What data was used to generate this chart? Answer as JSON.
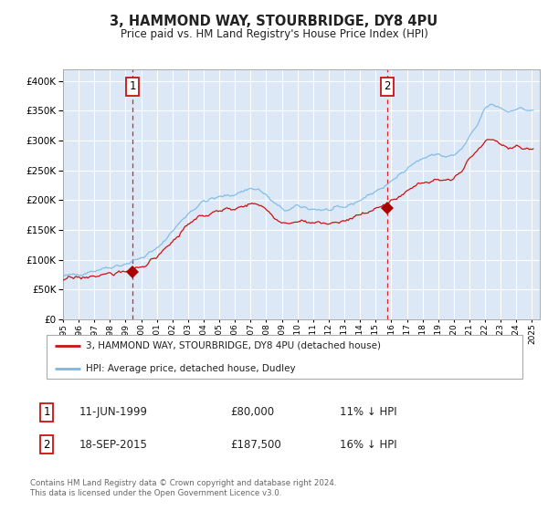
{
  "title": "3, HAMMOND WAY, STOURBRIDGE, DY8 4PU",
  "subtitle": "Price paid vs. HM Land Registry's House Price Index (HPI)",
  "legend_entry1": "3, HAMMOND WAY, STOURBRIDGE, DY8 4PU (detached house)",
  "legend_entry2": "HPI: Average price, detached house, Dudley",
  "transaction1_date": "11-JUN-1999",
  "transaction1_price": "£80,000",
  "transaction1_hpi": "11% ↓ HPI",
  "transaction1_year": 1999.45,
  "transaction1_value": 80000,
  "transaction2_date": "18-SEP-2015",
  "transaction2_price": "£187,500",
  "transaction2_hpi": "16% ↓ HPI",
  "transaction2_year": 2015.72,
  "transaction2_value": 187500,
  "hpi_line_color": "#7ab8e8",
  "price_line_color": "#cc1111",
  "vline_color": "#dd2222",
  "marker_color": "#aa0000",
  "bg_color": "#dce8f5",
  "grid_color": "#ffffff",
  "ylim": [
    0,
    420000
  ],
  "yticks": [
    0,
    50000,
    100000,
    150000,
    200000,
    250000,
    300000,
    350000,
    400000
  ],
  "footnote": "Contains HM Land Registry data © Crown copyright and database right 2024.\nThis data is licensed under the Open Government Licence v3.0."
}
